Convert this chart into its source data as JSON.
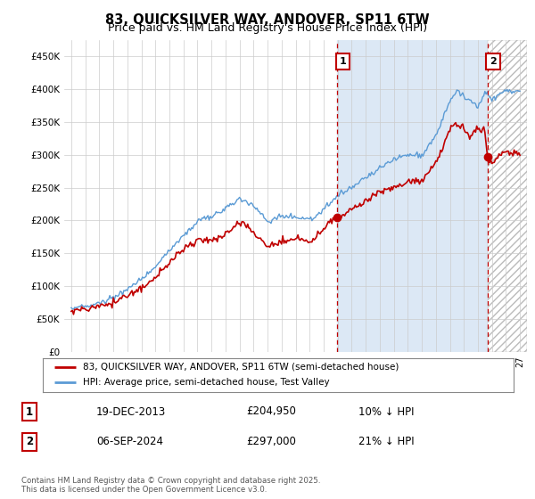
{
  "title": "83, QUICKSILVER WAY, ANDOVER, SP11 6TW",
  "subtitle": "Price paid vs. HM Land Registry's House Price Index (HPI)",
  "ylim": [
    0,
    475000
  ],
  "yticks": [
    0,
    50000,
    100000,
    150000,
    200000,
    250000,
    300000,
    350000,
    400000,
    450000
  ],
  "ytick_labels": [
    "£0",
    "£50K",
    "£100K",
    "£150K",
    "£200K",
    "£250K",
    "£300K",
    "£350K",
    "£400K",
    "£450K"
  ],
  "xlim_start": 1994.5,
  "xlim_end": 2027.5,
  "hpi_color": "#5b9bd5",
  "price_color": "#c00000",
  "vline_color": "#c00000",
  "vline1_x": 2013.97,
  "vline2_x": 2024.68,
  "dot1_x": 2013.97,
  "dot1_y": 204950,
  "dot2_x": 2024.68,
  "dot2_y": 297000,
  "ann1_label": "1",
  "ann2_label": "2",
  "table_row1": [
    "1",
    "19-DEC-2013",
    "£204,950",
    "10% ↓ HPI"
  ],
  "table_row2": [
    "2",
    "06-SEP-2024",
    "£297,000",
    "21% ↓ HPI"
  ],
  "legend_line1": "83, QUICKSILVER WAY, ANDOVER, SP11 6TW (semi-detached house)",
  "legend_line2": "HPI: Average price, semi-detached house, Test Valley",
  "footer": "Contains HM Land Registry data © Crown copyright and database right 2025.\nThis data is licensed under the Open Government Licence v3.0.",
  "plot_bg_color": "#ffffff",
  "fill_between_color": "#dce8f5",
  "grid_color": "#cccccc",
  "fig_bg_color": "#ffffff"
}
